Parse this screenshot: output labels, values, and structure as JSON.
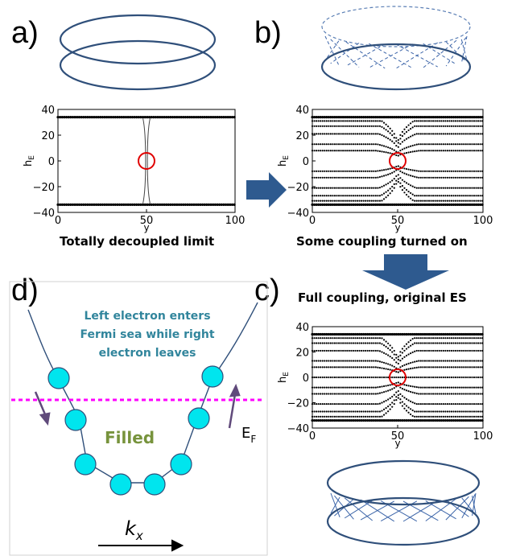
{
  "panels": {
    "a": {
      "letter": "a)",
      "caption": "Totally decoupled limit"
    },
    "b": {
      "letter": "b)",
      "caption": "Some coupling turned on"
    },
    "c": {
      "letter": "c)",
      "caption": "Full coupling, original ES"
    },
    "d": {
      "letter": "d)"
    }
  },
  "panel_d": {
    "annotation_lines": [
      "Left electron enters",
      "Fermi sea while right",
      "electron leaves"
    ],
    "filled_label": "Filled",
    "fermi_label": "E",
    "fermi_sub": "F",
    "kx_label": "k",
    "kx_sub": "x",
    "colors": {
      "annotation": "#31859c",
      "filled": "#77933c",
      "fermi_line": "#ff00ff",
      "circle": "#00e5ee",
      "arrow": "#604a7b",
      "ring": "#2f4f7a"
    }
  },
  "chart_data": [
    {
      "type": "scatter",
      "panel": "a",
      "xlabel": "y",
      "ylabel": "h",
      "ylabel_sub": "E",
      "xlim": [
        0,
        100
      ],
      "ylim": [
        -40,
        40
      ],
      "xticks": [
        0,
        50,
        100
      ],
      "yticks": [
        40,
        20,
        0,
        -20,
        -40
      ],
      "bands": [
        34,
        -34
      ],
      "highlight": {
        "x": 50,
        "y": 0
      }
    },
    {
      "type": "scatter",
      "panel": "b",
      "xlabel": "y",
      "ylabel": "h",
      "ylabel_sub": "E",
      "xlim": [
        0,
        100
      ],
      "ylim": [
        -40,
        40
      ],
      "xticks": [
        0,
        50,
        100
      ],
      "yticks": [
        40,
        20,
        0,
        -20,
        -40
      ],
      "bands": [
        34,
        31,
        27,
        21,
        13,
        8,
        -8,
        -13,
        -21,
        -27,
        -31,
        -34
      ],
      "highlight": {
        "x": 50,
        "y": 0
      }
    },
    {
      "type": "scatter",
      "panel": "c",
      "xlabel": "y",
      "ylabel": "h",
      "ylabel_sub": "E",
      "xlim": [
        0,
        100
      ],
      "ylim": [
        -40,
        40
      ],
      "xticks": [
        0,
        50,
        100
      ],
      "yticks": [
        40,
        20,
        0,
        -20,
        -40
      ],
      "bands": [
        34,
        31,
        27,
        21,
        13,
        8,
        0,
        -8,
        -13,
        -21,
        -27,
        -31,
        -34
      ],
      "highlight": {
        "x": 50,
        "y": 0
      }
    }
  ]
}
